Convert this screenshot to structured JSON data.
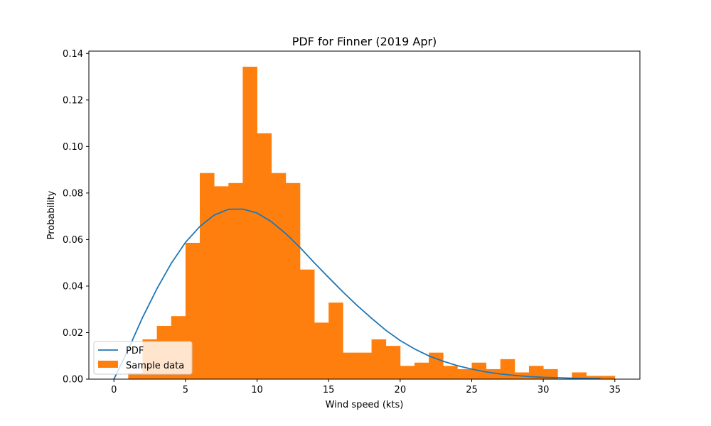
{
  "chart_data": {
    "type": "bar",
    "title": "PDF for Finner (2019 Apr)",
    "xlabel": "Wind speed (kts)",
    "ylabel": "Probability",
    "xlim": [
      -1.75,
      36.75
    ],
    "ylim": [
      0,
      0.141
    ],
    "x_ticks": [
      0,
      5,
      10,
      15,
      20,
      25,
      30,
      35
    ],
    "x_tick_labels": [
      "0",
      "5",
      "10",
      "15",
      "20",
      "25",
      "30",
      "35"
    ],
    "y_ticks": [
      0,
      0.02,
      0.04,
      0.06,
      0.08,
      0.1,
      0.12,
      0.14
    ],
    "y_tick_labels": [
      "0.00",
      "0.02",
      "0.04",
      "0.06",
      "0.08",
      "0.10",
      "0.12",
      "0.14"
    ],
    "grid": false,
    "legend_position": "lower-left",
    "series": [
      {
        "name": "Sample data",
        "kind": "histogram",
        "color": "#ff7f0e",
        "bin_edges": [
          1,
          2,
          3,
          4,
          5,
          6,
          7,
          8,
          9,
          10,
          11,
          12,
          13,
          14,
          15,
          16,
          17,
          18,
          19,
          20,
          21,
          22,
          23,
          24,
          25,
          26,
          27,
          28,
          29,
          30,
          31,
          32,
          33,
          34,
          35
        ],
        "values": [
          0.0027,
          0.0171,
          0.0229,
          0.0271,
          0.0586,
          0.0886,
          0.0829,
          0.0843,
          0.1343,
          0.1057,
          0.0886,
          0.0843,
          0.0471,
          0.0243,
          0.0329,
          0.0114,
          0.0114,
          0.0171,
          0.0143,
          0.0057,
          0.0071,
          0.0114,
          0.0057,
          0.0043,
          0.0071,
          0.0043,
          0.0086,
          0.0029,
          0.0057,
          0.0043,
          0.0,
          0.0029,
          0.0014,
          0.0014
        ]
      },
      {
        "name": "PDF",
        "kind": "line",
        "color": "#1f77b4",
        "x": [
          0,
          1,
          2,
          3,
          4,
          5,
          6,
          7,
          8,
          9,
          10,
          11,
          12,
          13,
          14,
          15,
          16,
          17,
          18,
          19,
          20,
          21,
          22,
          23,
          24,
          25,
          26,
          27,
          28,
          29,
          30,
          31,
          32,
          33,
          34
        ],
        "values": [
          0.0,
          0.0127,
          0.0265,
          0.0388,
          0.0497,
          0.0588,
          0.0656,
          0.0705,
          0.073,
          0.0731,
          0.0714,
          0.0677,
          0.0626,
          0.0566,
          0.05,
          0.0437,
          0.0375,
          0.0316,
          0.0262,
          0.021,
          0.0166,
          0.013,
          0.01,
          0.0077,
          0.0058,
          0.0043,
          0.0031,
          0.0022,
          0.0016,
          0.0011,
          0.0008,
          0.0006,
          0.0004,
          0.0003,
          0.0002
        ]
      }
    ]
  }
}
